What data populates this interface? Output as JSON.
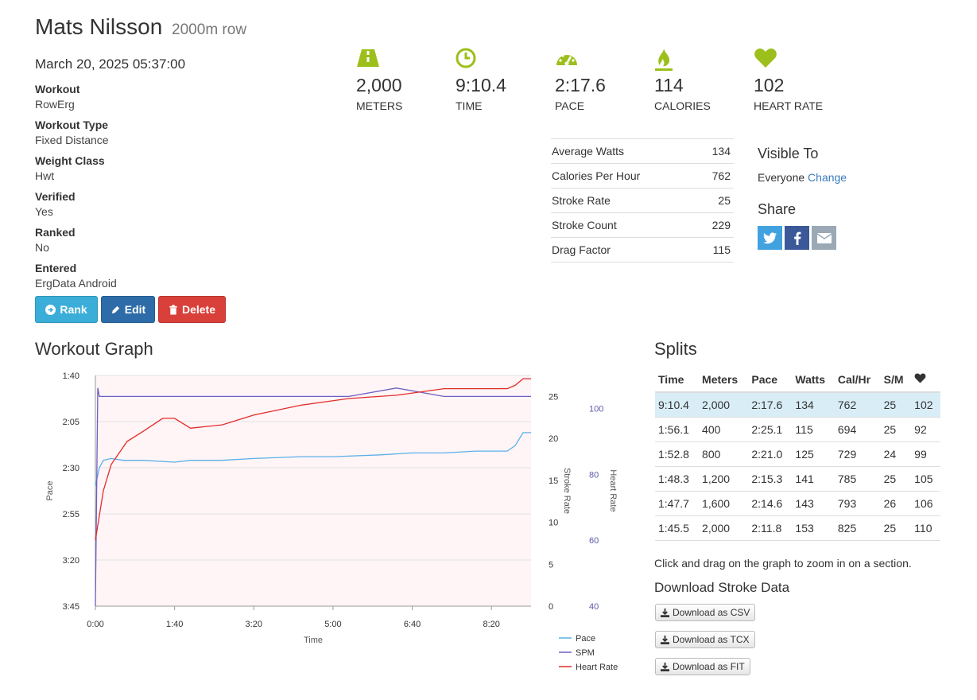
{
  "header": {
    "name": "Mats Nilsson",
    "subtitle": "2000m row",
    "date": "March 20, 2025 05:37:00"
  },
  "info": [
    {
      "label": "Workout",
      "value": "RowErg"
    },
    {
      "label": "Workout Type",
      "value": "Fixed Distance"
    },
    {
      "label": "Weight Class",
      "value": "Hwt"
    },
    {
      "label": "Verified",
      "value": "Yes"
    },
    {
      "label": "Ranked",
      "value": "No"
    },
    {
      "label": "Entered",
      "value": "ErgData Android"
    }
  ],
  "buttons": {
    "rank": "Rank",
    "edit": "Edit",
    "delete": "Delete"
  },
  "stats": [
    {
      "icon": "road-icon",
      "value": "2,000",
      "label": "METERS"
    },
    {
      "icon": "clock-icon",
      "value": "9:10.4",
      "label": "TIME"
    },
    {
      "icon": "speedometer-icon",
      "value": "2:17.6",
      "label": "PACE"
    },
    {
      "icon": "flame-icon",
      "value": "114",
      "label": "CALORIES"
    },
    {
      "icon": "heart-icon",
      "value": "102",
      "label": "HEART RATE"
    }
  ],
  "icon_color": "#9cbf1b",
  "metrics": [
    {
      "label": "Average Watts",
      "value": "134"
    },
    {
      "label": "Calories Per Hour",
      "value": "762"
    },
    {
      "label": "Stroke Rate",
      "value": "25"
    },
    {
      "label": "Stroke Count",
      "value": "229"
    },
    {
      "label": "Drag Factor",
      "value": "115"
    }
  ],
  "visibility": {
    "title": "Visible To",
    "value": "Everyone",
    "change_link": "Change"
  },
  "share": {
    "title": "Share",
    "buttons": [
      "twitter-icon",
      "facebook-icon",
      "email-icon"
    ]
  },
  "graph": {
    "title": "Workout Graph",
    "hint": "Click and drag on the graph to zoom in on a section."
  },
  "chart_data": {
    "type": "line",
    "title": "",
    "xlabel": "Time",
    "x_ticks": [
      "0:00",
      "1:40",
      "3:20",
      "5:00",
      "6:40",
      "8:20"
    ],
    "x_range_seconds": [
      0,
      550
    ],
    "y_axes": [
      {
        "label": "Pace",
        "ticks": [
          "1:40",
          "2:05",
          "2:30",
          "2:55",
          "3:20",
          "3:45"
        ],
        "range_seconds": [
          100,
          225
        ],
        "reversed": true
      },
      {
        "label": "Stroke Rate",
        "ticks": [
          "0",
          "5",
          "10",
          "15",
          "20",
          "25"
        ],
        "range": [
          0,
          27.5
        ]
      },
      {
        "label": "Heart Rate",
        "ticks": [
          "40",
          "60",
          "80",
          "100"
        ],
        "range": [
          40,
          110
        ]
      }
    ],
    "series": [
      {
        "name": "Pace",
        "color": "#5bb0e8",
        "axis": "Pace",
        "t": [
          0,
          5,
          10,
          20,
          35,
          60,
          100,
          120,
          160,
          200,
          260,
          300,
          360,
          400,
          440,
          480,
          520,
          530,
          540,
          550
        ],
        "values": [
          160,
          150,
          146,
          145,
          146,
          146,
          147,
          146,
          146,
          145,
          144,
          144,
          143,
          142,
          142,
          141,
          141,
          138,
          131,
          131
        ]
      },
      {
        "name": "SPM",
        "color": "#6c5fc4",
        "axis": "Stroke Rate",
        "t": [
          0,
          3,
          5,
          20,
          60,
          100,
          140,
          200,
          260,
          320,
          380,
          440,
          500,
          550
        ],
        "values": [
          0,
          26,
          25,
          25,
          25,
          25,
          25,
          25,
          25,
          25,
          26,
          25,
          25,
          25
        ]
      },
      {
        "name": "Heart Rate",
        "color": "#e32b2b",
        "axis": "Heart Rate",
        "t": [
          0,
          10,
          20,
          40,
          60,
          85,
          100,
          120,
          160,
          200,
          260,
          320,
          380,
          440,
          500,
          520,
          530,
          540,
          550
        ],
        "values": [
          60,
          75,
          83,
          90,
          93,
          97,
          97,
          94,
          95,
          98,
          101,
          103,
          104,
          106,
          106,
          106,
          107,
          109,
          109
        ]
      }
    ],
    "legend": [
      "Pace",
      "SPM",
      "Heart Rate"
    ],
    "grid": true,
    "legend_position": "bottom-right"
  },
  "splits": {
    "title": "Splits",
    "headers": [
      "Time",
      "Meters",
      "Pace",
      "Watts",
      "Cal/Hr",
      "S/M",
      "heart-icon"
    ],
    "rows": [
      [
        "9:10.4",
        "2,000",
        "2:17.6",
        "134",
        "762",
        "25",
        "102"
      ],
      [
        "1:56.1",
        "400",
        "2:25.1",
        "115",
        "694",
        "25",
        "92"
      ],
      [
        "1:52.8",
        "800",
        "2:21.0",
        "125",
        "729",
        "24",
        "99"
      ],
      [
        "1:48.3",
        "1,200",
        "2:15.3",
        "141",
        "785",
        "25",
        "105"
      ],
      [
        "1:47.7",
        "1,600",
        "2:14.6",
        "143",
        "793",
        "26",
        "106"
      ],
      [
        "1:45.5",
        "2,000",
        "2:11.8",
        "153",
        "825",
        "25",
        "110"
      ]
    ]
  },
  "downloads": {
    "title": "Download Stroke Data",
    "buttons": [
      "Download as CSV",
      "Download as TCX",
      "Download as FIT"
    ]
  }
}
